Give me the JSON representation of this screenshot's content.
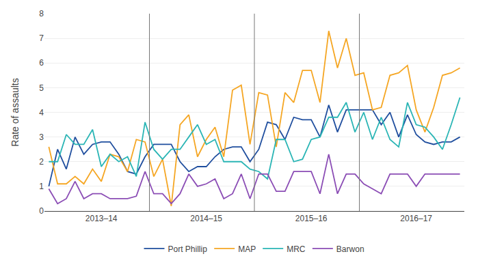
{
  "chart_data": {
    "type": "line",
    "ylabel": "Rate of assaults",
    "categories": [
      null,
      null,
      null,
      null,
      null,
      null,
      "2013–14",
      null,
      null,
      null,
      null,
      null,
      null,
      null,
      null,
      null,
      null,
      null,
      "2014–15",
      null,
      null,
      null,
      null,
      null,
      null,
      null,
      null,
      null,
      null,
      null,
      "2015–16",
      null,
      null,
      null,
      null,
      null,
      null,
      null,
      null,
      null,
      null,
      null,
      "2016–17",
      null,
      null,
      null,
      null,
      null
    ],
    "series": [
      {
        "name": "Port Phillip",
        "color": "#1f4e9e",
        "values": [
          1.0,
          2.5,
          1.7,
          3.0,
          2.3,
          2.7,
          2.8,
          2.8,
          2.3,
          1.6,
          1.5,
          2.2,
          2.7,
          2.7,
          2.7,
          2.0,
          1.6,
          1.8,
          1.8,
          2.2,
          2.5,
          2.6,
          2.6,
          2.0,
          2.5,
          3.6,
          3.5,
          2.9,
          3.8,
          3.7,
          3.7,
          3.0,
          4.3,
          3.2,
          4.1,
          4.1,
          4.1,
          4.1,
          3.5,
          4.0,
          3.0,
          3.9,
          3.1,
          2.8,
          2.7,
          2.8,
          2.8,
          3.0
        ]
      },
      {
        "name": "MAP",
        "color": "#f5a623",
        "values": [
          2.6,
          1.1,
          1.1,
          1.4,
          1.1,
          1.7,
          1.2,
          2.3,
          2.2,
          1.6,
          2.9,
          2.8,
          1.4,
          2.1,
          0.2,
          3.5,
          3.9,
          2.2,
          2.9,
          3.4,
          2.2,
          4.9,
          5.1,
          2.7,
          4.8,
          4.7,
          2.6,
          4.8,
          4.4,
          5.7,
          5.7,
          4.4,
          7.3,
          5.8,
          7.0,
          5.5,
          5.6,
          4.1,
          4.2,
          5.5,
          5.6,
          5.9,
          4.1,
          3.2,
          4.2,
          5.5,
          5.6,
          5.8
        ]
      },
      {
        "name": "MRC",
        "color": "#2ab5b5",
        "values": [
          2.0,
          2.0,
          3.1,
          2.7,
          2.7,
          3.3,
          1.8,
          2.3,
          2.0,
          2.2,
          1.4,
          3.6,
          2.5,
          2.1,
          2.5,
          2.5,
          3.0,
          3.5,
          2.7,
          2.9,
          2.0,
          2.0,
          2.0,
          1.7,
          1.6,
          1.3,
          2.9,
          2.9,
          2.0,
          2.1,
          2.9,
          3.0,
          3.8,
          3.8,
          4.4,
          3.2,
          4.0,
          2.9,
          3.8,
          2.9,
          2.6,
          4.4,
          3.5,
          3.4,
          3.0,
          2.5,
          3.5,
          4.6
        ]
      },
      {
        "name": "Barwon",
        "color": "#8b4db5",
        "values": [
          0.9,
          0.3,
          0.5,
          1.2,
          0.5,
          0.7,
          0.7,
          0.5,
          0.5,
          0.5,
          0.6,
          1.6,
          0.7,
          0.7,
          0.3,
          0.7,
          1.5,
          1.0,
          1.1,
          1.3,
          0.5,
          0.7,
          1.5,
          0.5,
          1.5,
          1.5,
          0.8,
          0.8,
          1.6,
          1.6,
          1.6,
          0.7,
          2.3,
          0.7,
          1.5,
          1.5,
          1.1,
          0.9,
          0.7,
          1.5,
          1.5,
          1.5,
          1.0,
          1.5,
          1.5,
          1.5,
          1.5,
          1.5
        ]
      }
    ],
    "ylim": [
      0,
      8
    ],
    "yticks": [
      0,
      1,
      2,
      3,
      4,
      5,
      6,
      7,
      8
    ],
    "grid": true,
    "legend": "bottom"
  }
}
